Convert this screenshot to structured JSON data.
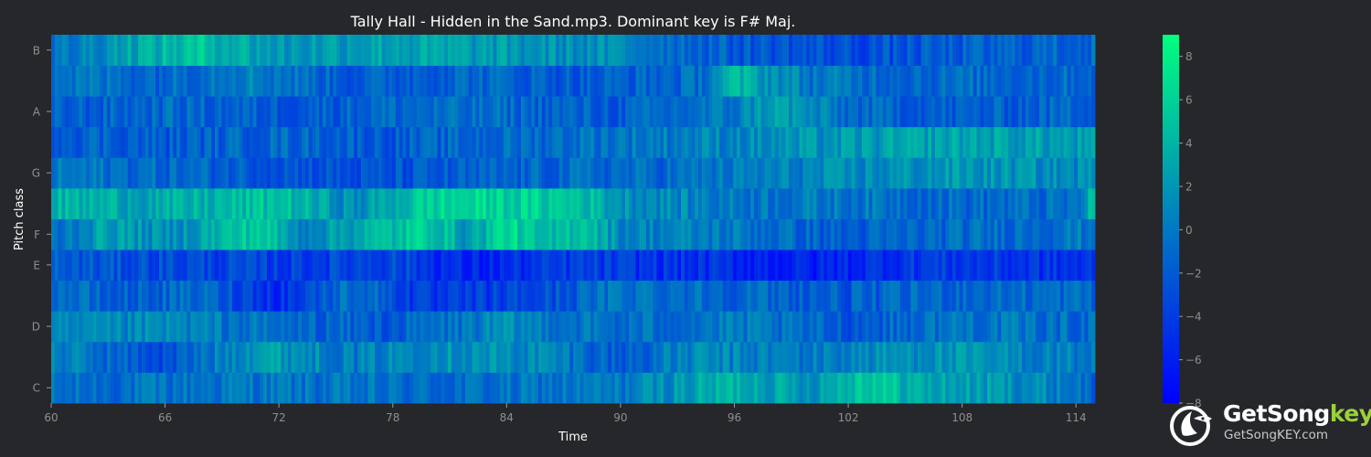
{
  "chart_data": {
    "type": "heatmap",
    "title": "Tally Hall - Hidden in the Sand.mp3. Dominant key is F# Maj.",
    "xlabel": "Time",
    "ylabel": "Pitch class",
    "x_range": [
      60,
      115
    ],
    "x_ticks": [
      "60",
      "66",
      "72",
      "78",
      "84",
      "90",
      "96",
      "102",
      "108",
      "114"
    ],
    "rows": [
      "C",
      "C#",
      "D",
      "D#",
      "E",
      "F",
      "F#",
      "G",
      "G#",
      "A",
      "A#",
      "B"
    ],
    "y_tick_labels": [
      "C",
      "D",
      "E",
      "F",
      "G",
      "A",
      "B"
    ],
    "colorbar": {
      "min": -8,
      "max": 9,
      "ticks": [
        "8",
        "6",
        "4",
        "2",
        "0",
        "−2",
        "−4",
        "−6",
        "−8"
      ],
      "colormap": [
        "#0000ff",
        "#00ff80"
      ]
    },
    "row_profiles": {
      "C": [
        [
          60,
          -1
        ],
        [
          70,
          0
        ],
        [
          80,
          -1
        ],
        [
          90,
          0
        ],
        [
          96,
          4
        ],
        [
          100,
          2
        ],
        [
          103,
          6
        ],
        [
          106,
          3
        ],
        [
          110,
          2
        ],
        [
          114,
          0
        ],
        [
          115,
          -2
        ]
      ],
      "C#": [
        [
          60,
          1
        ],
        [
          66,
          -3
        ],
        [
          71,
          3
        ],
        [
          76,
          0
        ],
        [
          80,
          2
        ],
        [
          86,
          1
        ],
        [
          90,
          -2
        ],
        [
          94,
          1
        ],
        [
          100,
          0
        ],
        [
          106,
          2
        ],
        [
          115,
          0
        ]
      ],
      "D": [
        [
          60,
          0
        ],
        [
          66,
          1
        ],
        [
          72,
          -1
        ],
        [
          78,
          -2
        ],
        [
          84,
          1
        ],
        [
          90,
          -1
        ],
        [
          96,
          0
        ],
        [
          102,
          -2
        ],
        [
          108,
          0
        ],
        [
          115,
          -1
        ]
      ],
      "D#": [
        [
          60,
          0
        ],
        [
          63,
          -2
        ],
        [
          68,
          -1
        ],
        [
          72,
          -5
        ],
        [
          76,
          0
        ],
        [
          80,
          -5
        ],
        [
          86,
          -3
        ],
        [
          90,
          0
        ],
        [
          96,
          -1
        ],
        [
          102,
          -2
        ],
        [
          108,
          -1
        ],
        [
          115,
          -1
        ]
      ],
      "E": [
        [
          60,
          -2
        ],
        [
          66,
          -3
        ],
        [
          72,
          -4
        ],
        [
          78,
          -3
        ],
        [
          82,
          -6
        ],
        [
          88,
          -4
        ],
        [
          94,
          -5
        ],
        [
          100,
          -6
        ],
        [
          106,
          -4
        ],
        [
          115,
          -5
        ]
      ],
      "F": [
        [
          60,
          -1
        ],
        [
          63,
          3
        ],
        [
          66,
          1
        ],
        [
          71,
          6
        ],
        [
          73,
          1
        ],
        [
          80,
          6
        ],
        [
          82,
          2
        ],
        [
          84,
          7
        ],
        [
          86,
          3
        ],
        [
          88,
          6
        ],
        [
          90,
          1
        ],
        [
          96,
          0
        ],
        [
          102,
          -2
        ],
        [
          108,
          -1
        ],
        [
          115,
          0
        ]
      ],
      "F#": [
        [
          60,
          4
        ],
        [
          66,
          3
        ],
        [
          72,
          5
        ],
        [
          76,
          1
        ],
        [
          80,
          6
        ],
        [
          84,
          6
        ],
        [
          88,
          5
        ],
        [
          90,
          2
        ],
        [
          96,
          0
        ],
        [
          102,
          0
        ],
        [
          108,
          -1
        ],
        [
          114,
          -1
        ],
        [
          115,
          5
        ]
      ],
      "G": [
        [
          60,
          0
        ],
        [
          66,
          -1
        ],
        [
          72,
          -2
        ],
        [
          76,
          -3
        ],
        [
          82,
          -2
        ],
        [
          88,
          -1
        ],
        [
          92,
          -1
        ],
        [
          96,
          0
        ],
        [
          102,
          1
        ],
        [
          108,
          2
        ],
        [
          115,
          1
        ]
      ],
      "G#": [
        [
          60,
          -1
        ],
        [
          66,
          -2
        ],
        [
          72,
          -1
        ],
        [
          78,
          -2
        ],
        [
          84,
          -1
        ],
        [
          90,
          0
        ],
        [
          96,
          1
        ],
        [
          102,
          2
        ],
        [
          108,
          3
        ],
        [
          115,
          2
        ]
      ],
      "A": [
        [
          60,
          -2
        ],
        [
          66,
          -1
        ],
        [
          72,
          -2
        ],
        [
          78,
          -1
        ],
        [
          84,
          -1
        ],
        [
          90,
          -2
        ],
        [
          96,
          0
        ],
        [
          98,
          3
        ],
        [
          102,
          -1
        ],
        [
          108,
          -2
        ],
        [
          115,
          -1
        ]
      ],
      "A#": [
        [
          60,
          0
        ],
        [
          66,
          -1
        ],
        [
          70,
          1
        ],
        [
          76,
          -2
        ],
        [
          82,
          -1
        ],
        [
          88,
          -2
        ],
        [
          94,
          -1
        ],
        [
          96,
          4
        ],
        [
          100,
          0
        ],
        [
          106,
          -1
        ],
        [
          115,
          -1
        ]
      ],
      "B": [
        [
          60,
          -1
        ],
        [
          64,
          3
        ],
        [
          68,
          5
        ],
        [
          72,
          2
        ],
        [
          78,
          3
        ],
        [
          84,
          2
        ],
        [
          90,
          1
        ],
        [
          96,
          -2
        ],
        [
          102,
          -3
        ],
        [
          108,
          -2
        ],
        [
          115,
          -1
        ]
      ]
    }
  },
  "brand": {
    "word_main": "GetSong",
    "word_accent": "key",
    "url": "GetSongKEY.com"
  }
}
